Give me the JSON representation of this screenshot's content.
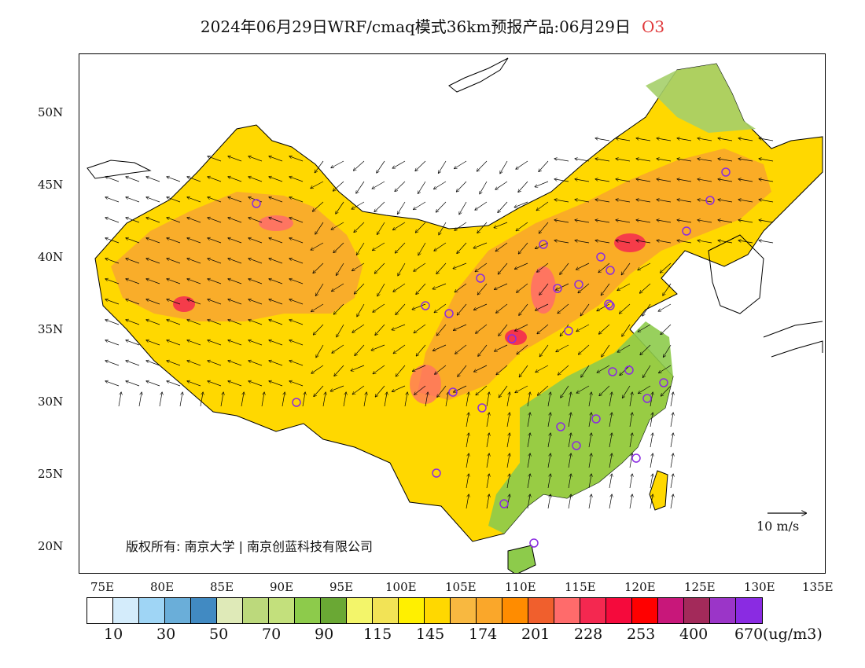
{
  "title": {
    "text": "2024年06月29日WRF/cmaq模式36km预报产品:06月29日",
    "pollutant": "O3"
  },
  "map": {
    "lat_labels": [
      "50N",
      "45N",
      "40N",
      "35N",
      "30N",
      "25N",
      "20N"
    ],
    "lon_labels": [
      "75E",
      "80E",
      "85E",
      "90E",
      "95E",
      "100E",
      "105E",
      "110E",
      "115E",
      "120E",
      "125E",
      "130E",
      "135E"
    ],
    "wind_scale_label": "10 m/s",
    "copyright": "版权所有: 南京大学 | 南京创蓝科技有限公司"
  },
  "colorbar": {
    "colors": [
      "#ffffff",
      "#d4ecfb",
      "#9fd5f5",
      "#6aaed9",
      "#418ac2",
      "#dfeab8",
      "#bcd97c",
      "#c3e07c",
      "#8dcb4b",
      "#6aa834",
      "#f3f56a",
      "#f2e356",
      "#fff000",
      "#ffd800",
      "#f8b840",
      "#faa72a",
      "#ff8c00",
      "#f05f2d",
      "#ff6b6b",
      "#f42850",
      "#f50a3c",
      "#ff0000",
      "#c8177a",
      "#a32a5a",
      "#9b35c8",
      "#8a2be2"
    ],
    "labels": [
      "10",
      "30",
      "50",
      "70",
      "90",
      "115",
      "145",
      "174",
      "201",
      "228",
      "253",
      "400",
      "670"
    ],
    "unit": "(ug/m3)"
  }
}
